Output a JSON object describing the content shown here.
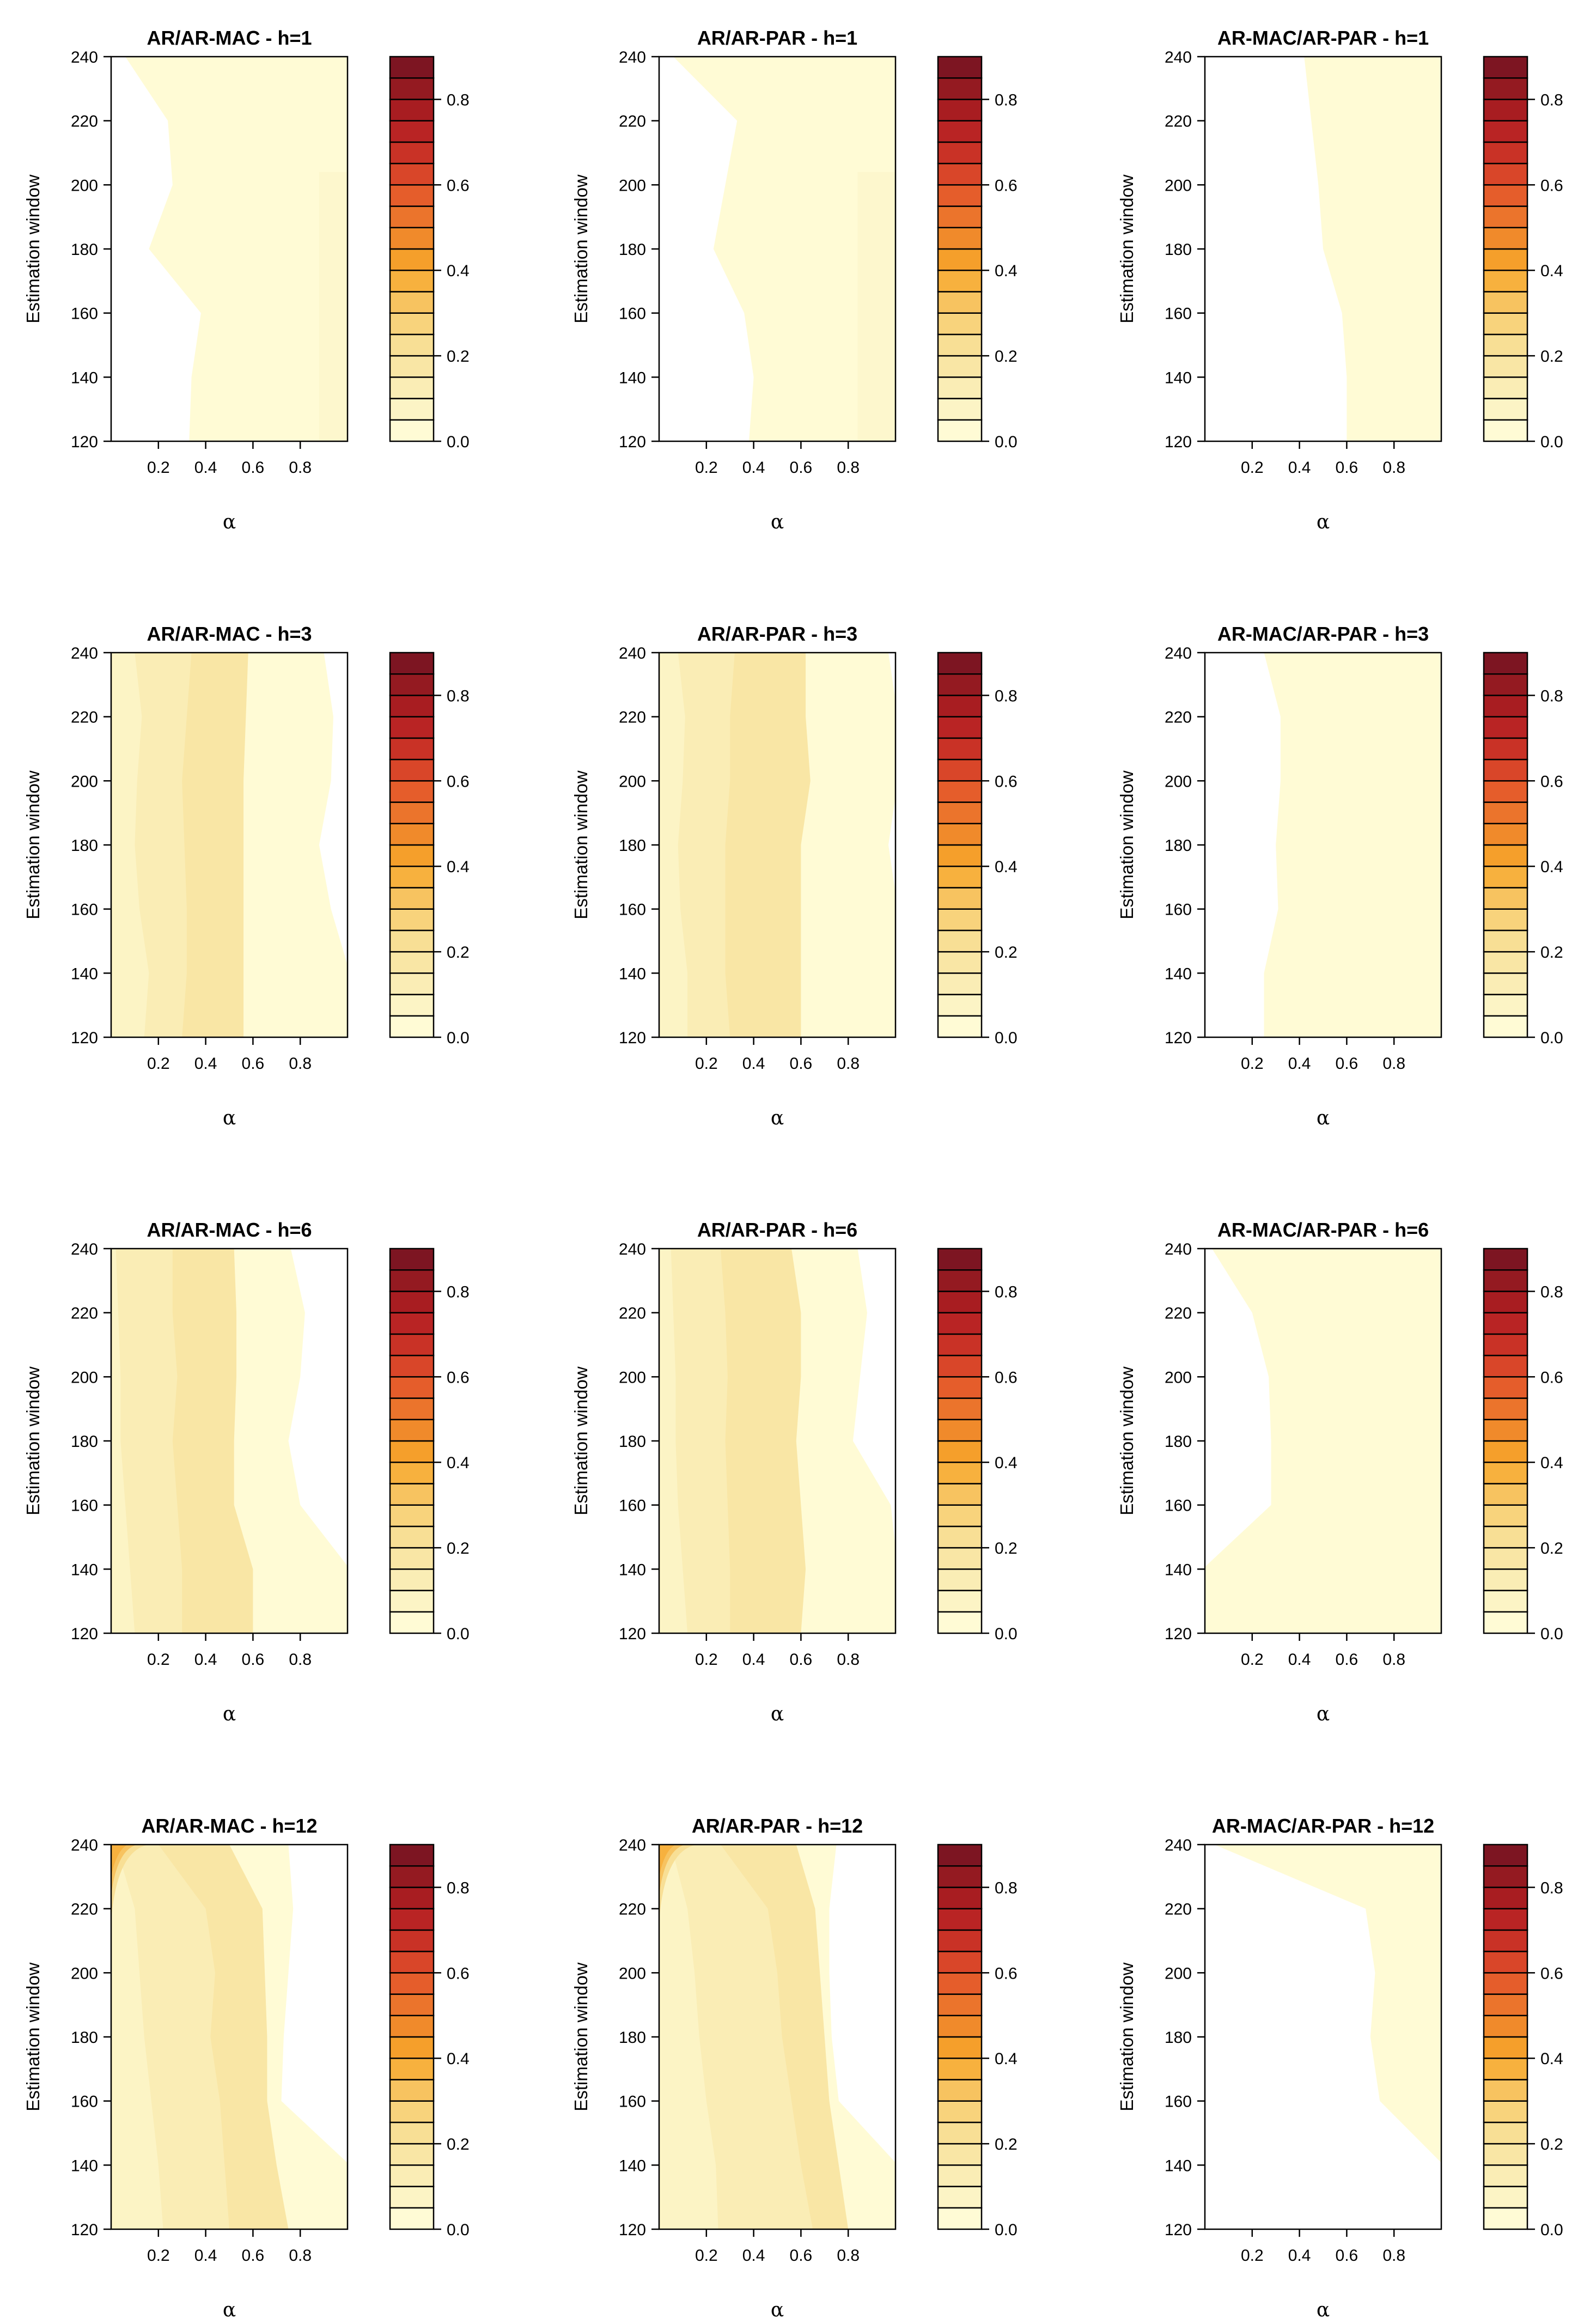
{
  "chart_data": {
    "type": "heatmap",
    "layout": {
      "rows": 4,
      "cols": 3
    },
    "colorbar": {
      "ticks": [
        0.0,
        0.2,
        0.4,
        0.6,
        0.8
      ],
      "tick_labels": [
        "0.0",
        "0.2",
        "0.4",
        "0.6",
        "0.8"
      ],
      "levels": 18,
      "range": [
        0.0,
        0.9
      ],
      "colors": [
        "#fffbd5",
        "#fcf4c5",
        "#faedb5",
        "#f9e6a5",
        "#f8df95",
        "#f8d37c",
        "#f7c360",
        "#f7b13e",
        "#f59f2b",
        "#f08a2b",
        "#eb742c",
        "#e55d2b",
        "#d94629",
        "#c93226",
        "#b92424",
        "#a81d21",
        "#941a21",
        "#7d1522"
      ]
    },
    "x_axis": {
      "label": "α",
      "range": [
        0,
        1
      ],
      "ticks": [
        0.2,
        0.4,
        0.6,
        0.8
      ],
      "tick_labels": [
        "0.2",
        "0.4",
        "0.6",
        "0.8"
      ]
    },
    "y_axis": {
      "label": "Estimation window",
      "range": [
        120,
        240
      ],
      "ticks": [
        120,
        140,
        160,
        180,
        200,
        220,
        240
      ],
      "tick_labels": [
        "120",
        "140",
        "160",
        "180",
        "200",
        "220",
        "240"
      ]
    },
    "y_samples": [
      120,
      140,
      160,
      180,
      200,
      220,
      240
    ],
    "panels": [
      {
        "title": "AR/AR-MAC - h=1",
        "blank_below_alpha": [
          0.33,
          0.34,
          0.38,
          0.16,
          0.26,
          0.24,
          0.06
        ],
        "contours": [],
        "light_band_from_alpha": 0.88
      },
      {
        "title": "AR/AR-PAR - h=1",
        "blank_below_alpha": [
          0.38,
          0.4,
          0.36,
          0.23,
          0.28,
          0.33,
          0.06
        ],
        "contours": [],
        "light_band_from_alpha": 0.84
      },
      {
        "title": "AR-MAC/AR-PAR - h=1",
        "blank_below_alpha": [
          0.6,
          0.6,
          0.58,
          0.5,
          0.48,
          0.45,
          0.42
        ],
        "contours": [],
        "light_band_from_alpha": null
      },
      {
        "title": "AR/AR-MAC - h=3",
        "blank_above_alpha": [
          1.01,
          1.01,
          0.93,
          0.88,
          0.93,
          0.94,
          0.9
        ],
        "contours": [
          [
            0.14,
            0.16,
            0.12,
            0.1,
            0.11,
            0.13,
            0.1
          ],
          [
            0.3,
            0.32,
            0.32,
            0.31,
            0.3,
            0.32,
            0.34
          ],
          [
            0.56,
            0.56,
            0.56,
            0.56,
            0.56,
            0.57,
            0.58
          ]
        ]
      },
      {
        "title": "AR/AR-PAR - h=3",
        "blank_above_alpha": [
          1.01,
          1.01,
          1.01,
          0.97,
          1.01,
          1.01,
          0.97
        ],
        "contours": [
          [
            0.12,
            0.12,
            0.09,
            0.08,
            0.1,
            0.11,
            0.08
          ],
          [
            0.3,
            0.28,
            0.28,
            0.28,
            0.3,
            0.3,
            0.32
          ],
          [
            0.6,
            0.6,
            0.6,
            0.6,
            0.64,
            0.62,
            0.62
          ]
        ]
      },
      {
        "title": "AR-MAC/AR-PAR - h=3",
        "blank_below_alpha": [
          0.25,
          0.25,
          0.31,
          0.3,
          0.32,
          0.32,
          0.25
        ],
        "contours": []
      },
      {
        "title": "AR/AR-MAC - h=6",
        "blank_above_alpha": [
          1.01,
          1.01,
          0.8,
          0.75,
          0.8,
          0.82,
          0.76
        ],
        "contours": [
          [
            0.1,
            0.08,
            0.06,
            0.04,
            0.04,
            0.03,
            0.02
          ],
          [
            0.3,
            0.3,
            0.28,
            0.26,
            0.28,
            0.26,
            0.26
          ],
          [
            0.6,
            0.6,
            0.52,
            0.52,
            0.53,
            0.53,
            0.52
          ]
        ]
      },
      {
        "title": "AR/AR-PAR - h=6",
        "blank_above_alpha": [
          1.01,
          1.01,
          0.98,
          0.82,
          0.85,
          0.88,
          0.84
        ],
        "contours": [
          [
            0.12,
            0.1,
            0.08,
            0.07,
            0.07,
            0.06,
            0.05
          ],
          [
            0.3,
            0.3,
            0.29,
            0.28,
            0.29,
            0.28,
            0.26
          ],
          [
            0.6,
            0.62,
            0.6,
            0.58,
            0.6,
            0.6,
            0.56
          ]
        ]
      },
      {
        "title": "AR-MAC/AR-PAR - h=6",
        "blank_below_alpha": [
          -0.01,
          -0.01,
          0.28,
          0.28,
          0.27,
          0.2,
          0.03
        ],
        "contours": []
      },
      {
        "title": "AR/AR-MAC - h=12",
        "blank_above_alpha": [
          1.01,
          1.01,
          0.72,
          0.73,
          0.75,
          0.77,
          0.75
        ],
        "contours": [
          [
            0.22,
            0.2,
            0.17,
            0.14,
            0.12,
            0.1,
            0.02
          ],
          [
            0.5,
            0.48,
            0.46,
            0.42,
            0.44,
            0.4,
            0.2
          ],
          [
            0.75,
            0.7,
            0.66,
            0.66,
            0.65,
            0.64,
            0.5
          ]
        ]
      },
      {
        "title": "AR/AR-PAR - h=12",
        "blank_above_alpha": [
          1.01,
          1.01,
          0.76,
          0.73,
          0.72,
          0.72,
          0.75
        ],
        "contours": [
          [
            0.25,
            0.24,
            0.2,
            0.17,
            0.15,
            0.12,
            0.05
          ],
          [
            0.65,
            0.6,
            0.56,
            0.52,
            0.5,
            0.46,
            0.26
          ],
          [
            0.8,
            0.76,
            0.72,
            0.7,
            0.68,
            0.66,
            0.58
          ]
        ]
      },
      {
        "title": "AR-MAC/AR-PAR - h=12",
        "blank_below_alpha": [
          1.01,
          1.01,
          0.74,
          0.7,
          0.72,
          0.68,
          0.04
        ],
        "contours": []
      }
    ]
  }
}
